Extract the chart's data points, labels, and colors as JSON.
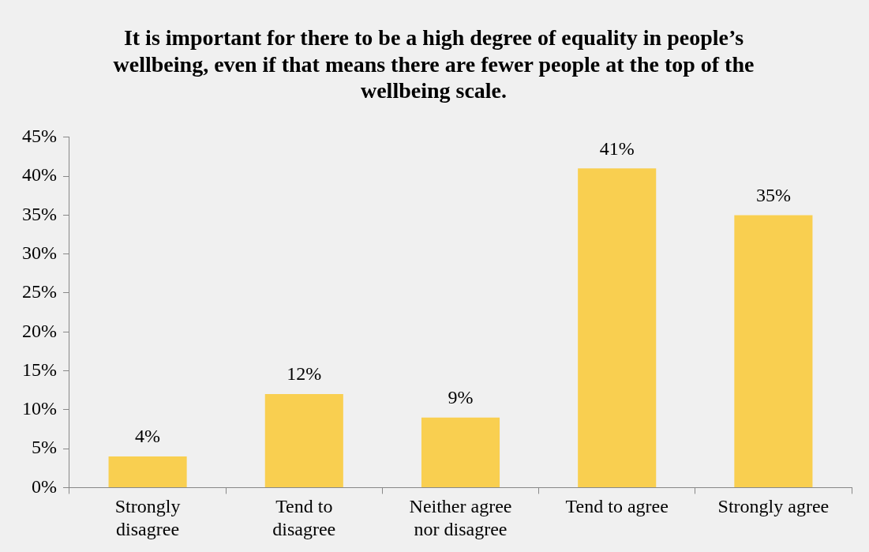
{
  "chart_data": {
    "type": "bar",
    "title": "It is important for there to be a high degree of equality in people’s wellbeing, even if that means there are fewer people at the top of the wellbeing scale.",
    "categories": [
      "Strongly disagree",
      "Tend to disagree",
      "Neither agree nor disagree",
      "Tend to agree",
      "Strongly agree"
    ],
    "values": [
      4,
      12,
      9,
      41,
      35
    ],
    "value_labels": [
      "4%",
      "12%",
      "9%",
      "41%",
      "35%"
    ],
    "color": "#f9cf50",
    "ylim": [
      0,
      45
    ],
    "yticks": [
      {
        "value": 0,
        "label": "0%"
      },
      {
        "value": 5,
        "label": "5%"
      },
      {
        "value": 10,
        "label": "10%"
      },
      {
        "value": 15,
        "label": "15%"
      },
      {
        "value": 20,
        "label": "20%"
      },
      {
        "value": 25,
        "label": "25%"
      },
      {
        "value": 30,
        "label": "30%"
      },
      {
        "value": 35,
        "label": "35%"
      },
      {
        "value": 40,
        "label": "40%"
      },
      {
        "value": 45,
        "label": "45%"
      }
    ],
    "grid": false,
    "legend": false
  }
}
